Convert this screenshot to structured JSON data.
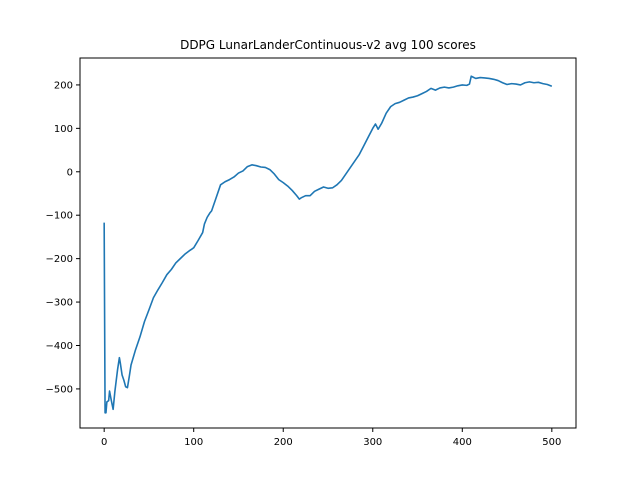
{
  "chart_data": {
    "type": "line",
    "title": "DDPG LunarLanderContinuous-v2 avg 100 scores",
    "xlabel": "",
    "ylabel": "",
    "xlim": [
      -27,
      527
    ],
    "ylim": [
      -590,
      262
    ],
    "xticks": [
      0,
      100,
      200,
      300,
      400,
      500
    ],
    "yticks": [
      -500,
      -400,
      -300,
      -200,
      -100,
      0,
      100,
      200
    ],
    "grid": false,
    "series": [
      {
        "color": "#1f77b4",
        "points": [
          [
            0,
            -117
          ],
          [
            1,
            -555
          ],
          [
            2,
            -555
          ],
          [
            3,
            -530
          ],
          [
            5,
            -527
          ],
          [
            6,
            -505
          ],
          [
            8,
            -527
          ],
          [
            10,
            -547
          ],
          [
            12,
            -505
          ],
          [
            15,
            -455
          ],
          [
            17,
            -428
          ],
          [
            18,
            -440
          ],
          [
            20,
            -468
          ],
          [
            22,
            -480
          ],
          [
            24,
            -495
          ],
          [
            26,
            -497
          ],
          [
            28,
            -472
          ],
          [
            30,
            -445
          ],
          [
            35,
            -410
          ],
          [
            40,
            -380
          ],
          [
            45,
            -345
          ],
          [
            50,
            -318
          ],
          [
            55,
            -290
          ],
          [
            60,
            -272
          ],
          [
            65,
            -255
          ],
          [
            70,
            -237
          ],
          [
            75,
            -225
          ],
          [
            80,
            -210
          ],
          [
            85,
            -200
          ],
          [
            90,
            -190
          ],
          [
            95,
            -182
          ],
          [
            98,
            -178
          ],
          [
            100,
            -175
          ],
          [
            105,
            -158
          ],
          [
            110,
            -140
          ],
          [
            112,
            -120
          ],
          [
            115,
            -105
          ],
          [
            118,
            -95
          ],
          [
            120,
            -90
          ],
          [
            125,
            -60
          ],
          [
            130,
            -30
          ],
          [
            135,
            -23
          ],
          [
            140,
            -18
          ],
          [
            145,
            -12
          ],
          [
            150,
            -3
          ],
          [
            155,
            2
          ],
          [
            160,
            12
          ],
          [
            165,
            16
          ],
          [
            170,
            14
          ],
          [
            175,
            11
          ],
          [
            180,
            10
          ],
          [
            185,
            5
          ],
          [
            190,
            -5
          ],
          [
            195,
            -18
          ],
          [
            200,
            -25
          ],
          [
            205,
            -33
          ],
          [
            210,
            -43
          ],
          [
            215,
            -55
          ],
          [
            218,
            -63
          ],
          [
            220,
            -60
          ],
          [
            225,
            -55
          ],
          [
            230,
            -55
          ],
          [
            235,
            -45
          ],
          [
            240,
            -40
          ],
          [
            245,
            -35
          ],
          [
            250,
            -38
          ],
          [
            255,
            -37
          ],
          [
            260,
            -30
          ],
          [
            265,
            -20
          ],
          [
            270,
            -5
          ],
          [
            275,
            10
          ],
          [
            280,
            25
          ],
          [
            285,
            40
          ],
          [
            290,
            60
          ],
          [
            295,
            80
          ],
          [
            300,
            100
          ],
          [
            303,
            110
          ],
          [
            306,
            98
          ],
          [
            310,
            112
          ],
          [
            315,
            135
          ],
          [
            320,
            150
          ],
          [
            325,
            157
          ],
          [
            330,
            160
          ],
          [
            335,
            165
          ],
          [
            340,
            170
          ],
          [
            345,
            172
          ],
          [
            350,
            175
          ],
          [
            355,
            180
          ],
          [
            360,
            185
          ],
          [
            365,
            192
          ],
          [
            370,
            188
          ],
          [
            375,
            193
          ],
          [
            380,
            195
          ],
          [
            385,
            193
          ],
          [
            390,
            195
          ],
          [
            395,
            198
          ],
          [
            400,
            200
          ],
          [
            405,
            199
          ],
          [
            408,
            202
          ],
          [
            410,
            220
          ],
          [
            412,
            218
          ],
          [
            415,
            215
          ],
          [
            420,
            217
          ],
          [
            425,
            216
          ],
          [
            430,
            215
          ],
          [
            435,
            213
          ],
          [
            440,
            210
          ],
          [
            445,
            205
          ],
          [
            450,
            201
          ],
          [
            455,
            203
          ],
          [
            460,
            202
          ],
          [
            465,
            200
          ],
          [
            470,
            205
          ],
          [
            475,
            207
          ],
          [
            480,
            205
          ],
          [
            485,
            206
          ],
          [
            490,
            203
          ],
          [
            495,
            201
          ],
          [
            500,
            197
          ]
        ]
      }
    ]
  }
}
